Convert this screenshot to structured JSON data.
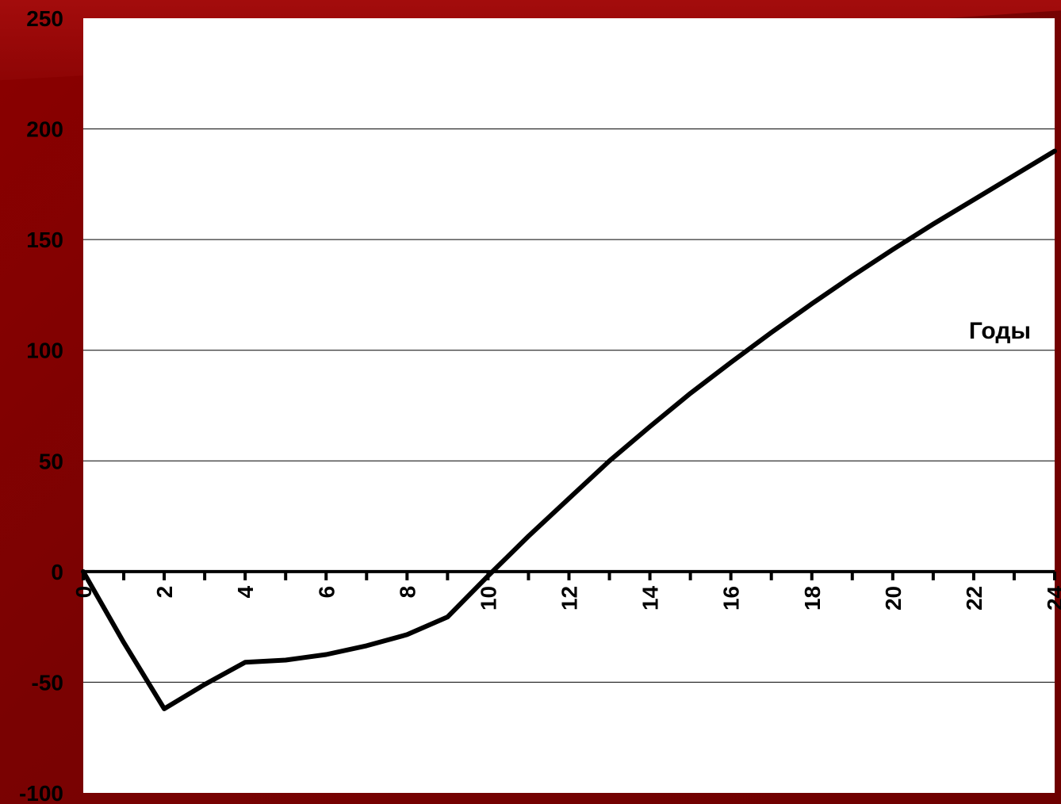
{
  "chart_data": {
    "type": "line",
    "title": "",
    "xlabel": "Годы",
    "ylabel": "",
    "xlim": [
      0,
      24
    ],
    "ylim": [
      -100,
      250
    ],
    "y_ticks": [
      250,
      200,
      150,
      100,
      50,
      0,
      -50,
      -100
    ],
    "x_ticks": [
      0,
      2,
      4,
      6,
      8,
      10,
      12,
      14,
      16,
      18,
      20,
      22,
      24
    ],
    "grid": "horizontal",
    "line_color": "#000000",
    "plot_background": "#ffffff",
    "series": [
      {
        "x": [
          0,
          1,
          2,
          3,
          4,
          5,
          6,
          7,
          8,
          9,
          10,
          11,
          12,
          13,
          14,
          15,
          16,
          17,
          18,
          19,
          20,
          21,
          22,
          23,
          24
        ],
        "values": [
          0,
          -32,
          -62,
          -51,
          -41,
          -40,
          -37.5,
          -33.5,
          -28.5,
          -20.5,
          -2,
          16,
          33,
          50,
          65.5,
          80.5,
          94.5,
          108,
          121,
          133.5,
          145.5,
          157,
          168,
          179,
          190
        ]
      }
    ]
  }
}
